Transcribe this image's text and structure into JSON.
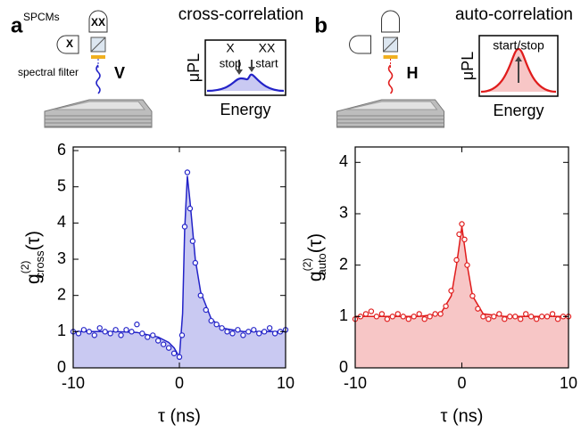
{
  "chart_data": [
    {
      "type": "scatter",
      "panel": "a",
      "title": "cross-correlation",
      "color": "#2323c8",
      "fill": "#c9c9f2",
      "xlabel": "τ (ns)",
      "ylabel": {
        "symbol": "g",
        "superscript": "(2)",
        "subscript": "cross",
        "suffix": "(τ)"
      },
      "xlim": [
        -10,
        10
      ],
      "xticks": [
        -10,
        0,
        10
      ],
      "ylim": [
        0,
        6.1
      ],
      "yticks": [
        0,
        1,
        2,
        3,
        4,
        5,
        6
      ],
      "x": [
        -10,
        -9.5,
        -9,
        -8.5,
        -8,
        -7.5,
        -7,
        -6.5,
        -6,
        -5.5,
        -5,
        -4.5,
        -4,
        -3.5,
        -3,
        -2.5,
        -2,
        -1.5,
        -1,
        -0.5,
        0,
        0.25,
        0.5,
        0.75,
        1,
        1.25,
        1.5,
        2,
        2.5,
        3,
        3.5,
        4,
        4.5,
        5,
        5.5,
        6,
        6.5,
        7,
        7.5,
        8,
        8.5,
        9,
        9.5,
        10
      ],
      "values": [
        1.0,
        0.95,
        1.05,
        1.0,
        0.9,
        1.1,
        1.0,
        0.95,
        1.05,
        0.9,
        1.05,
        1.0,
        1.2,
        0.95,
        0.85,
        0.9,
        0.75,
        0.65,
        0.55,
        0.4,
        0.3,
        0.9,
        3.9,
        5.4,
        4.4,
        3.5,
        2.9,
        2.0,
        1.6,
        1.3,
        1.2,
        1.1,
        1.0,
        0.95,
        1.05,
        0.9,
        1.0,
        1.05,
        0.95,
        1.0,
        1.1,
        0.95,
        1.0,
        1.05
      ],
      "fit": {
        "x": [
          -10,
          -6,
          -4,
          -2,
          -1,
          -0.5,
          0,
          0.3,
          0.5,
          0.75,
          1,
          1.5,
          2,
          3,
          4,
          6,
          10
        ],
        "values": [
          1,
          1,
          0.98,
          0.85,
          0.7,
          0.55,
          0.3,
          1.5,
          3.8,
          5.3,
          4.6,
          3.0,
          2.1,
          1.35,
          1.1,
          1.0,
          1.0
        ]
      },
      "schematic": {
        "detector_label": "SPCMs",
        "detectors": [
          "XX",
          "X"
        ],
        "filter_label": "spectral filter",
        "polarization": "V"
      },
      "inset": {
        "ylabel": "μPL",
        "xlabel": "Energy",
        "labels": [
          "X",
          "stop",
          "XX",
          "start"
        ]
      }
    },
    {
      "type": "scatter",
      "panel": "b",
      "title": "auto-correlation",
      "color": "#e01c1c",
      "fill": "#f7c6c6",
      "xlabel": "τ (ns)",
      "ylabel": {
        "symbol": "g",
        "superscript": "(2)",
        "subscript": "auto",
        "suffix": "(τ)"
      },
      "xlim": [
        -10,
        10
      ],
      "xticks": [
        -10,
        0,
        10
      ],
      "ylim": [
        0,
        4.3
      ],
      "yticks": [
        0,
        1,
        2,
        3,
        4
      ],
      "x": [
        -10,
        -9.5,
        -9,
        -8.5,
        -8,
        -7.5,
        -7,
        -6.5,
        -6,
        -5.5,
        -5,
        -4.5,
        -4,
        -3.5,
        -3,
        -2.5,
        -2,
        -1.5,
        -1,
        -0.5,
        -0.25,
        0,
        0.25,
        0.5,
        1,
        1.5,
        2,
        2.5,
        3,
        3.5,
        4,
        4.5,
        5,
        5.5,
        6,
        6.5,
        7,
        7.5,
        8,
        8.5,
        9,
        9.5,
        10
      ],
      "values": [
        0.95,
        1.0,
        1.05,
        1.1,
        1.0,
        1.05,
        0.95,
        1.0,
        1.05,
        1.0,
        0.95,
        1.0,
        1.05,
        0.95,
        1.0,
        1.05,
        1.05,
        1.2,
        1.5,
        2.1,
        2.6,
        2.8,
        2.5,
        2.0,
        1.4,
        1.15,
        1.0,
        0.95,
        1.0,
        1.05,
        0.95,
        1.0,
        1.0,
        0.95,
        1.05,
        1.0,
        0.95,
        1.0,
        1.0,
        1.05,
        0.95,
        1.0,
        1.0
      ],
      "fit": {
        "x": [
          -10,
          -4,
          -2,
          -1,
          -0.5,
          0,
          0.5,
          1,
          2,
          4,
          10
        ],
        "values": [
          1,
          1,
          1.05,
          1.4,
          2.0,
          2.75,
          2.0,
          1.4,
          1.05,
          1,
          1
        ]
      },
      "schematic": {
        "polarization": "H"
      },
      "inset": {
        "ylabel": "μPL",
        "xlabel": "Energy",
        "labels": [
          "start/stop"
        ]
      }
    }
  ]
}
